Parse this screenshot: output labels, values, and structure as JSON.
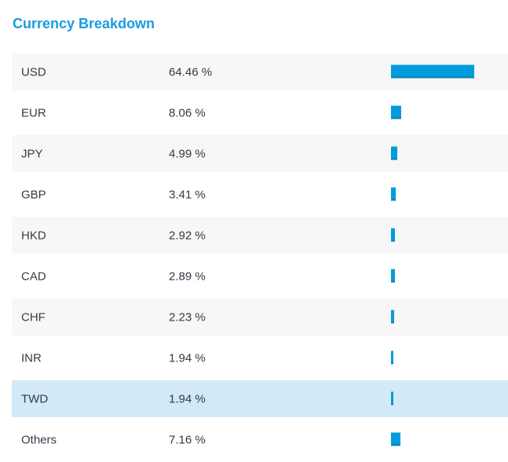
{
  "title": "Currency Breakdown",
  "colors": {
    "accent": "#189CDE",
    "bar": "#009CDB",
    "bar_edge": "#0A7EB3",
    "row_alt_bg": "#F7F7F7",
    "row_highlight_bg": "#D2E9F7",
    "text": "#333B46"
  },
  "chart_data": {
    "type": "bar",
    "orientation": "horizontal",
    "title": "Currency Breakdown",
    "categories": [
      "USD",
      "EUR",
      "JPY",
      "GBP",
      "HKD",
      "CAD",
      "CHF",
      "INR",
      "TWD",
      "Others"
    ],
    "values": [
      64.46,
      8.06,
      4.99,
      3.41,
      2.92,
      2.89,
      2.23,
      1.94,
      1.94,
      7.16
    ],
    "value_suffix": " %",
    "xlim": [
      0,
      100
    ],
    "grid": false,
    "legend": false,
    "highlighted_category": "TWD"
  },
  "rows": [
    {
      "label": "USD",
      "percent": "64.46 %",
      "value": 64.46,
      "highlighted": false
    },
    {
      "label": "EUR",
      "percent": "8.06 %",
      "value": 8.06,
      "highlighted": false
    },
    {
      "label": "JPY",
      "percent": "4.99 %",
      "value": 4.99,
      "highlighted": false
    },
    {
      "label": "GBP",
      "percent": "3.41 %",
      "value": 3.41,
      "highlighted": false
    },
    {
      "label": "HKD",
      "percent": "2.92 %",
      "value": 2.92,
      "highlighted": false
    },
    {
      "label": "CAD",
      "percent": "2.89 %",
      "value": 2.89,
      "highlighted": false
    },
    {
      "label": "CHF",
      "percent": "2.23 %",
      "value": 2.23,
      "highlighted": false
    },
    {
      "label": "INR",
      "percent": "1.94 %",
      "value": 1.94,
      "highlighted": false
    },
    {
      "label": "TWD",
      "percent": "1.94 %",
      "value": 1.94,
      "highlighted": true
    },
    {
      "label": "Others",
      "percent": "7.16 %",
      "value": 7.16,
      "highlighted": false
    }
  ]
}
